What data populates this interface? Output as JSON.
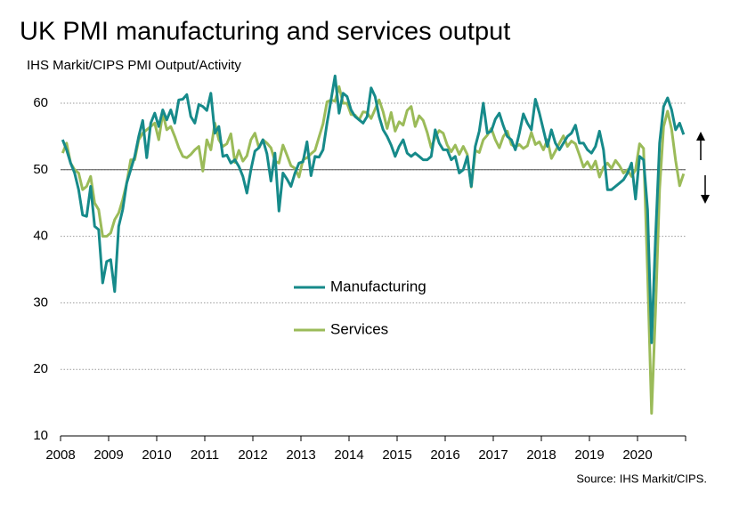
{
  "chart_data": {
    "type": "line",
    "title": "UK PMI manufacturing and services output",
    "subtitle": "IHS Markit/CIPS PMI Output/Activity",
    "source": "Source: IHS Markit/CIPS.",
    "categories": [
      "2008",
      null,
      null,
      null,
      null,
      null,
      null,
      null,
      null,
      null,
      null,
      null,
      "2009",
      null,
      null,
      null,
      null,
      null,
      null,
      null,
      null,
      null,
      null,
      null,
      "2010",
      null,
      null,
      null,
      null,
      null,
      null,
      null,
      null,
      null,
      null,
      null,
      "2011",
      null,
      null,
      null,
      null,
      null,
      null,
      null,
      null,
      null,
      null,
      null,
      "2012",
      null,
      null,
      null,
      null,
      null,
      null,
      null,
      null,
      null,
      null,
      null,
      "2013",
      null,
      null,
      null,
      null,
      null,
      null,
      null,
      null,
      null,
      null,
      null,
      "2014",
      null,
      null,
      null,
      null,
      null,
      null,
      null,
      null,
      null,
      null,
      null,
      "2015",
      null,
      null,
      null,
      null,
      null,
      null,
      null,
      null,
      null,
      null,
      null,
      "2016",
      null,
      null,
      null,
      null,
      null,
      null,
      null,
      null,
      null,
      null,
      null,
      "2017",
      null,
      null,
      null,
      null,
      null,
      null,
      null,
      null,
      null,
      null,
      null,
      "2018",
      null,
      null,
      null,
      null,
      null,
      null,
      null,
      null,
      null,
      null,
      null,
      "2019",
      null,
      null,
      null,
      null,
      null,
      null,
      null,
      null,
      null,
      null,
      null,
      "2020",
      null,
      null,
      null,
      null,
      null,
      null,
      null,
      null,
      null,
      null,
      null
    ],
    "series": [
      {
        "name": "Manufacturing",
        "color": "#168a8a",
        "values": [
          54.5,
          53,
          51,
          49.5,
          47,
          43.2,
          43,
          47.5,
          41.5,
          41,
          33,
          36.2,
          36.5,
          31.7,
          41.5,
          44,
          48,
          50,
          52,
          55,
          57.4,
          51.8,
          57,
          58.5,
          56.5,
          59,
          57.5,
          59,
          57,
          60.5,
          60.6,
          61.3,
          58,
          57,
          59.8,
          59.5,
          58.9,
          61.5,
          55.5,
          56.5,
          52,
          52.2,
          51,
          51.5,
          50.5,
          49,
          46.5,
          50,
          52.8,
          53.3,
          54.5,
          52.4,
          48.3,
          52.5,
          43.8,
          49.5,
          48.6,
          47.5,
          49.5,
          51,
          51.2,
          54.2,
          49.1,
          52,
          51.9,
          53,
          57,
          60.5,
          64.1,
          58.5,
          61.5,
          61,
          59,
          58,
          57.5,
          57,
          58,
          62.3,
          61,
          58,
          56,
          55,
          53.7,
          52,
          53.5,
          54.5,
          52.5,
          52,
          52.5,
          52,
          51.5,
          51.5,
          52,
          56,
          54,
          53,
          53,
          51.5,
          52,
          49.5,
          50,
          52,
          47.5,
          53.5,
          55.8,
          60,
          55.5,
          55.8,
          57.6,
          58.5,
          56.6,
          55,
          54.5,
          53,
          55.5,
          58.4,
          57,
          56,
          60.6,
          58.5,
          56,
          53.5,
          56,
          54,
          53,
          54,
          55,
          55.5,
          56.7,
          54,
          54,
          53,
          52.5,
          53.5,
          55.8,
          53,
          47,
          47,
          47.5,
          48,
          48.5,
          49.5,
          51,
          45.6,
          52,
          51.5,
          44,
          24,
          40,
          54,
          59.5,
          60.8,
          59,
          56,
          57,
          55.3
        ]
      },
      {
        "name": "Services",
        "color": "#9bbb59",
        "values": [
          52.5,
          54,
          51,
          50,
          49.5,
          47,
          47.5,
          49,
          45,
          44,
          40,
          40,
          40.5,
          42.5,
          43.5,
          45.5,
          48,
          51.5,
          51.5,
          54.5,
          55.5,
          56,
          56.5,
          57,
          54.5,
          58.5,
          56,
          56.5,
          55,
          53.3,
          52,
          51.8,
          52.3,
          53,
          53.5,
          49.8,
          54.5,
          53,
          57,
          54.5,
          53.5,
          53.9,
          55.4,
          51.1,
          52.9,
          51.3,
          52.1,
          54.5,
          55.5,
          53.3,
          54.5,
          54,
          53.3,
          51.3,
          51,
          53.7,
          52.2,
          50.6,
          50.2,
          48.9,
          51.5,
          51.8,
          52.4,
          52.9,
          54.9,
          56.9,
          60.2,
          60.5,
          60.3,
          62.5,
          60,
          60,
          58.3,
          58.2,
          57.5,
          58.7,
          58.6,
          57.7,
          59.1,
          60.5,
          58.7,
          56.2,
          58.6,
          55.8,
          57.2,
          56.7,
          58.9,
          59.5,
          56.5,
          58.1,
          57.4,
          55.6,
          53.3,
          54.9,
          55.9,
          55.5,
          53.7,
          52.7,
          53.7,
          52.3,
          53.5,
          52.3,
          47.4,
          52.9,
          52.6,
          54.5,
          55.2,
          56.2,
          54.5,
          53.3,
          55,
          55.8,
          53.8,
          53.4,
          53.8,
          53.2,
          53.6,
          55.6,
          53.8,
          54.2,
          53,
          54.5,
          51.7,
          52.8,
          54,
          55.1,
          53.5,
          54.3,
          53.9,
          52.2,
          50.4,
          51.2,
          50.1,
          51.3,
          48.9,
          50.4,
          51,
          50.2,
          51.4,
          50.6,
          49.5,
          50,
          49,
          50,
          53.9,
          53.2,
          34.5,
          13.4,
          29,
          47.1,
          56.5,
          58.8,
          56.1,
          51.4,
          47.6,
          49.4
        ]
      }
    ],
    "ylim": [
      10,
      65
    ],
    "yticks": [
      10,
      20,
      30,
      40,
      50,
      60
    ],
    "grid": true,
    "reference_line": 50
  }
}
